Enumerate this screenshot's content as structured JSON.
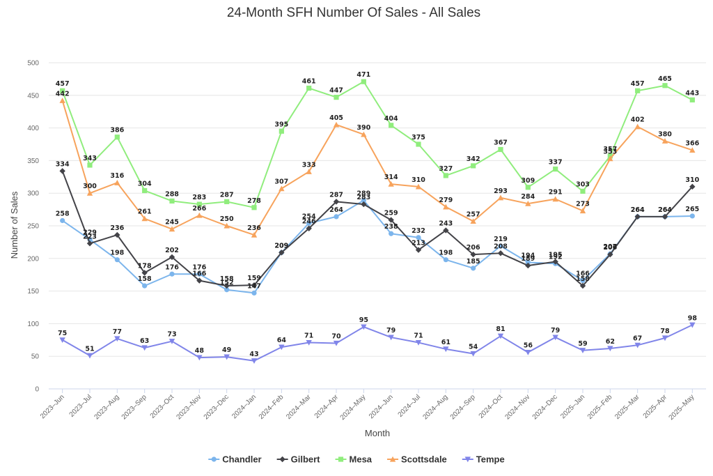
{
  "chart_data": {
    "type": "line",
    "title": "24-Month SFH Number Of Sales - All Sales",
    "xlabel": "Month",
    "ylabel": "Number of Sales",
    "ylim": [
      0,
      500
    ],
    "yticks": [
      0,
      50,
      100,
      150,
      200,
      250,
      300,
      350,
      400,
      450,
      500
    ],
    "grid": true,
    "legend_position": "bottom",
    "categories": [
      "2023–Jun",
      "2023–Jul",
      "2023–Aug",
      "2023–Sep",
      "2023–Oct",
      "2023–Nov",
      "2023–Dec",
      "2024–Jan",
      "2024–Feb",
      "2024–Mar",
      "2024–Apr",
      "2024–May",
      "2024–Jun",
      "2024–Jul",
      "2024–Aug",
      "2024–Sep",
      "2024–Oct",
      "2024–Nov",
      "2024–Dec",
      "2025–Jan",
      "2025–Feb",
      "2025–Mar",
      "2025–Apr",
      "2025–May"
    ],
    "series": [
      {
        "name": "Chandler",
        "color": "#7cb5ec",
        "marker": "circle",
        "values": [
          258,
          229,
          198,
          158,
          176,
          176,
          152,
          147,
          209,
          254,
          264,
          289,
          238,
          232,
          198,
          185,
          219,
          194,
          192,
          166,
          207,
          264,
          264,
          265
        ]
      },
      {
        "name": "Gilbert",
        "color": "#434348",
        "marker": "diamond",
        "values": [
          334,
          223,
          236,
          178,
          202,
          166,
          158,
          159,
          209,
          246,
          287,
          283,
          259,
          213,
          243,
          206,
          208,
          189,
          195,
          158,
          206,
          264,
          264,
          310
        ]
      },
      {
        "name": "Mesa",
        "color": "#90ed7d",
        "marker": "square",
        "values": [
          457,
          343,
          386,
          304,
          288,
          283,
          287,
          278,
          395,
          461,
          447,
          471,
          404,
          375,
          327,
          342,
          367,
          309,
          337,
          303,
          357,
          457,
          465,
          443
        ]
      },
      {
        "name": "Scottsdale",
        "color": "#f7a35c",
        "marker": "triangle",
        "values": [
          442,
          300,
          316,
          261,
          245,
          266,
          250,
          236,
          307,
          333,
          405,
          390,
          314,
          310,
          279,
          257,
          293,
          284,
          291,
          273,
          353,
          402,
          380,
          366
        ]
      },
      {
        "name": "Tempe",
        "color": "#8085e9",
        "marker": "triangle-down",
        "values": [
          75,
          51,
          77,
          63,
          73,
          48,
          49,
          43,
          64,
          71,
          70,
          95,
          79,
          71,
          61,
          54,
          81,
          56,
          79,
          59,
          62,
          67,
          78,
          98
        ]
      }
    ]
  }
}
